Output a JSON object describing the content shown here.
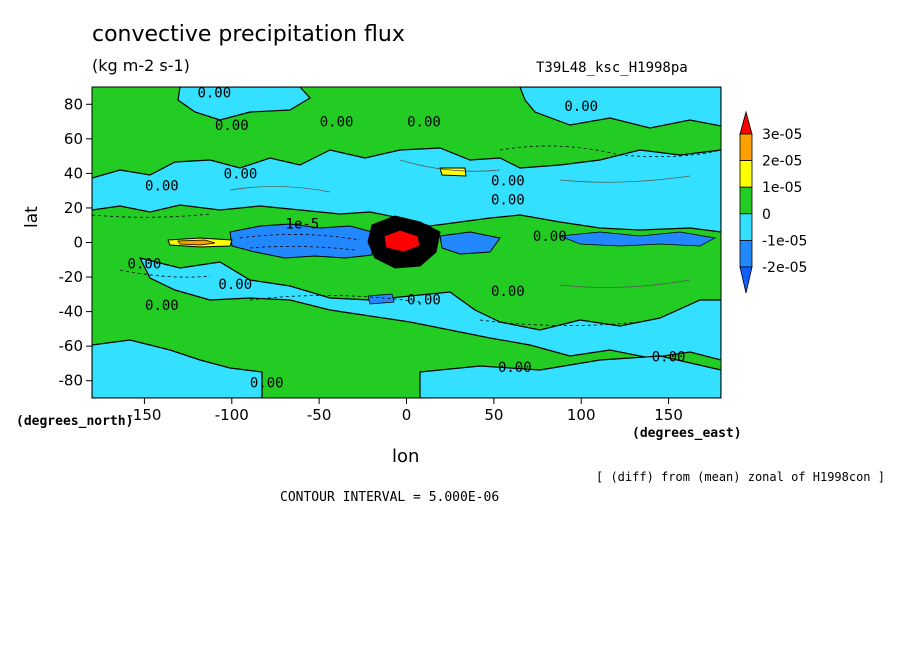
{
  "title": "convective precipitation flux",
  "units": "(kg m-2 s-1)",
  "run_label": "T39L48_ksc_H1998pa",
  "footer_note": "[ (diff) from (mean) zonal of H1998con ]",
  "contour_interval": "CONTOUR INTERVAL = 5.000E-06",
  "chart_data": {
    "type": "heatmap",
    "xlabel": "lon",
    "ylabel": "lat",
    "x_unit": "(degrees_east)",
    "y_unit": "(degrees_north)",
    "xlim": [
      -180,
      180
    ],
    "ylim": [
      -90,
      90
    ],
    "x_ticks": [
      -150,
      -100,
      -50,
      0,
      50,
      100,
      150
    ],
    "y_ticks": [
      80,
      60,
      40,
      20,
      0,
      -20,
      -40,
      -60,
      -80
    ],
    "colorbar": {
      "labels": [
        "3e-05",
        "2e-05",
        "1e-05",
        "0",
        "-1e-05",
        "-2e-05"
      ],
      "levels": [
        3e-05,
        2e-05,
        1e-05,
        0,
        -1e-05,
        -2e-05
      ],
      "colors": [
        "#ff0000",
        "#ffa000",
        "#ffff00",
        "#22cc22",
        "#33e0ff",
        "#2288ff",
        "#1060ff"
      ]
    },
    "contour_labels": [
      {
        "text": "0.00",
        "lon": -110,
        "lat": 84
      },
      {
        "text": "0.00",
        "lon": -100,
        "lat": 65
      },
      {
        "text": "0.00",
        "lon": -40,
        "lat": 67
      },
      {
        "text": "0.00",
        "lon": 10,
        "lat": 67
      },
      {
        "text": "0.00",
        "lon": 100,
        "lat": 76
      },
      {
        "text": "0.00",
        "lon": -140,
        "lat": 30
      },
      {
        "text": "0.00",
        "lon": -95,
        "lat": 37
      },
      {
        "text": "0.00",
        "lon": 58,
        "lat": 33
      },
      {
        "text": "0.00",
        "lon": 58,
        "lat": 22
      },
      {
        "text": "0.00",
        "lon": 82,
        "lat": 1
      },
      {
        "text": "0.00",
        "lon": -150,
        "lat": -15
      },
      {
        "text": "0.00",
        "lon": -98,
        "lat": -27
      },
      {
        "text": "0.00",
        "lon": -140,
        "lat": -39
      },
      {
        "text": "0.00",
        "lon": 10,
        "lat": -36
      },
      {
        "text": "0.00",
        "lon": 58,
        "lat": -31
      },
      {
        "text": "0.00",
        "lon": 62,
        "lat": -75
      },
      {
        "text": "0.00",
        "lon": 150,
        "lat": -69
      },
      {
        "text": "0.00",
        "lon": -80,
        "lat": -84
      },
      {
        "text": "-1e-5",
        "lon": -62,
        "lat": 8
      }
    ]
  }
}
